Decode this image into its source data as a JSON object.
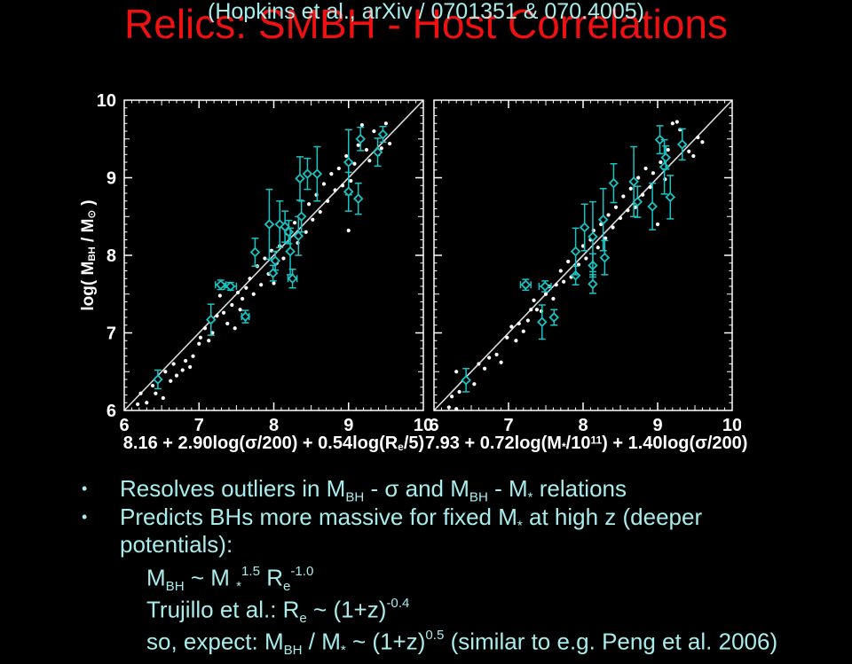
{
  "slide": {
    "title": "Relics: SMBH - Host Correlations",
    "subtitle": "(Hopkins et al., arXiv / 0701351 & 070.4005)",
    "bullet_char": "•",
    "colors": {
      "background": "#000000",
      "title": "#ee1111",
      "subtitle_text": "#a8ecec",
      "bullet_text": "#a8ecec",
      "plot_frame": "#ffffff",
      "plot_text": "#ffffff",
      "marker_white": "#ffffff",
      "marker_cyan": "#18c5c5",
      "unity_line": "#d9d9d9"
    },
    "bullets": [
      {
        "lines": [
          [
            [
              "n",
              "Resolves outliers in M"
            ],
            [
              "sub",
              "BH"
            ],
            [
              "n",
              " - σ and M"
            ],
            [
              "sub",
              "BH"
            ],
            [
              "n",
              " - M"
            ],
            [
              "sub",
              "*"
            ],
            [
              "n",
              " relations"
            ]
          ]
        ]
      },
      {
        "lines": [
          [
            [
              "n",
              "Predicts BHs more massive for fixed M"
            ],
            [
              "sub",
              "*"
            ],
            [
              "n",
              " at high z (deeper"
            ]
          ],
          [
            [
              "n",
              "potentials):"
            ]
          ]
        ]
      }
    ],
    "sub_items": [
      [
        [
          "n",
          "M"
        ],
        [
          "sub",
          "BH"
        ],
        [
          "n",
          " ~ M "
        ],
        [
          "sub",
          "*"
        ],
        [
          "sup",
          "1.5"
        ],
        [
          "n",
          " R"
        ],
        [
          "sub",
          "e"
        ],
        [
          "sup",
          "-1.0"
        ]
      ],
      [
        [
          "n",
          "Trujillo et al.: R"
        ],
        [
          "sub",
          "e"
        ],
        [
          "n",
          " ~ (1+z)"
        ],
        [
          "sup",
          "-0.4"
        ]
      ],
      [
        [
          "n",
          "so, expect: M"
        ],
        [
          "sub",
          "BH"
        ],
        [
          "n",
          " / M"
        ],
        [
          "sub",
          "*"
        ],
        [
          "n",
          " ~ (1+z)"
        ],
        [
          "sup",
          "0.5"
        ],
        [
          "n",
          " (similar to e.g. Peng et al. 2006)"
        ]
      ]
    ]
  },
  "chart_data": [
    {
      "type": "scatter",
      "xlim": [
        6,
        10
      ],
      "ylim": [
        6,
        10
      ],
      "xticks": [
        6,
        7,
        8,
        9,
        10
      ],
      "yticks": [
        6,
        7,
        8,
        9,
        10
      ],
      "show_ytick_labels": true,
      "grid": false,
      "legend": false,
      "xlabel_rich": [
        [
          "n",
          "8.16 + 2.90log(σ/200) + 0.54log(R"
        ],
        [
          "sub",
          "e"
        ],
        [
          "n",
          "/5)"
        ]
      ],
      "ylabel_rich": [
        [
          "n",
          "log( M"
        ],
        [
          "sub",
          "BH"
        ],
        [
          "n",
          " / M"
        ],
        [
          "sub",
          "⊙"
        ],
        [
          "n",
          " )"
        ]
      ],
      "unity_line": {
        "x": [
          6,
          10
        ],
        "y": [
          6,
          10
        ]
      },
      "series": [
        {
          "marker": "dot",
          "color": "#ffffff",
          "points": [
            [
              6.18,
              6.08
            ],
            [
              6.22,
              6.22
            ],
            [
              6.3,
              6.1
            ],
            [
              6.38,
              6.32
            ],
            [
              6.42,
              6.22
            ],
            [
              6.52,
              6.16
            ],
            [
              6.55,
              6.5
            ],
            [
              6.62,
              6.38
            ],
            [
              6.66,
              6.6
            ],
            [
              6.7,
              6.45
            ],
            [
              6.78,
              6.52
            ],
            [
              6.82,
              6.64
            ],
            [
              6.88,
              6.56
            ],
            [
              6.92,
              6.7
            ],
            [
              7.0,
              6.86
            ],
            [
              7.02,
              6.94
            ],
            [
              7.08,
              7.06
            ],
            [
              7.13,
              6.9
            ],
            [
              7.18,
              7.0
            ],
            [
              7.24,
              7.22
            ],
            [
              7.28,
              7.48
            ],
            [
              7.33,
              7.26
            ],
            [
              7.38,
              7.12
            ],
            [
              7.44,
              7.36
            ],
            [
              7.48,
              7.06
            ],
            [
              7.52,
              7.52
            ],
            [
              7.55,
              7.3
            ],
            [
              7.58,
              7.44
            ],
            [
              7.63,
              7.58
            ],
            [
              7.68,
              7.7
            ],
            [
              7.73,
              7.5
            ],
            [
              7.78,
              7.86
            ],
            [
              7.83,
              7.62
            ],
            [
              7.88,
              7.96
            ],
            [
              7.93,
              7.76
            ],
            [
              7.97,
              8.06
            ],
            [
              8.0,
              7.64
            ],
            [
              8.04,
              7.9
            ],
            [
              8.08,
              8.12
            ],
            [
              8.13,
              7.96
            ],
            [
              8.18,
              8.28
            ],
            [
              8.23,
              8.06
            ],
            [
              8.28,
              8.42
            ],
            [
              8.32,
              8.16
            ],
            [
              8.38,
              8.52
            ],
            [
              8.43,
              8.3
            ],
            [
              8.47,
              8.66
            ],
            [
              8.52,
              8.46
            ],
            [
              8.57,
              8.78
            ],
            [
              8.62,
              8.56
            ],
            [
              8.67,
              8.92
            ],
            [
              8.72,
              8.7
            ],
            [
              8.77,
              9.05
            ],
            [
              8.82,
              8.84
            ],
            [
              8.87,
              9.12
            ],
            [
              8.92,
              8.9
            ],
            [
              8.97,
              9.28
            ],
            [
              9.0,
              8.32
            ],
            [
              9.03,
              8.96
            ],
            [
              9.08,
              9.18
            ],
            [
              9.13,
              9.42
            ],
            [
              9.18,
              9.68
            ],
            [
              9.24,
              9.36
            ],
            [
              9.28,
              9.22
            ],
            [
              9.34,
              9.6
            ],
            [
              9.4,
              9.3
            ],
            [
              9.44,
              9.38
            ],
            [
              9.5,
              9.7
            ],
            [
              9.55,
              9.44
            ]
          ]
        },
        {
          "marker": "diamond",
          "color": "#18c5c5",
          "points": [
            [
              6.45,
              6.4,
              0.12
            ],
            [
              7.16,
              7.17,
              0.2
            ],
            [
              7.29,
              7.62,
              0.06,
              0.07
            ],
            [
              7.42,
              7.6,
              0.05,
              0.08
            ],
            [
              7.62,
              7.21,
              0.08,
              0.05
            ],
            [
              7.75,
              8.04,
              0.18
            ],
            [
              7.94,
              8.4,
              0.45
            ],
            [
              8.02,
              7.93,
              0.12
            ],
            [
              7.99,
              7.77,
              0.1
            ],
            [
              8.08,
              8.4,
              0.3
            ],
            [
              8.15,
              8.37,
              0.2
            ],
            [
              8.2,
              8.3,
              0.15
            ],
            [
              8.22,
              8.05,
              0.3
            ],
            [
              8.25,
              7.7,
              0.12,
              0.06
            ],
            [
              8.33,
              8.25,
              0.25
            ],
            [
              8.37,
              8.5,
              0.2
            ],
            [
              8.35,
              8.99,
              0.28
            ],
            [
              8.45,
              9.05,
              0.2
            ],
            [
              8.58,
              9.05,
              0.35
            ],
            [
              9.0,
              9.2,
              0.42
            ],
            [
              9.0,
              8.82,
              0.25
            ],
            [
              9.13,
              8.73,
              0.2
            ],
            [
              9.16,
              9.5,
              0.15
            ],
            [
              9.39,
              9.33,
              0.18
            ],
            [
              9.46,
              9.56,
              0.1
            ]
          ]
        }
      ]
    },
    {
      "type": "scatter",
      "xlim": [
        6,
        10
      ],
      "ylim": [
        6,
        10
      ],
      "xticks": [
        6,
        7,
        8,
        9,
        10
      ],
      "yticks": [
        6,
        7,
        8,
        9,
        10
      ],
      "show_ytick_labels": false,
      "grid": false,
      "legend": false,
      "xlabel_rich": [
        [
          "n",
          "7.93 + 0.72log(M"
        ],
        [
          "sub",
          "*"
        ],
        [
          "n",
          "/10"
        ],
        [
          "sup",
          "11"
        ],
        [
          "n",
          ") + 1.40log(σ/200)"
        ]
      ],
      "unity_line": {
        "x": [
          6,
          10
        ],
        "y": [
          6,
          10
        ]
      },
      "series": [
        {
          "marker": "dot",
          "color": "#ffffff",
          "points": [
            [
              6.2,
              6.04
            ],
            [
              6.24,
              6.18
            ],
            [
              6.3,
              6.02
            ],
            [
              6.34,
              6.24
            ],
            [
              6.3,
              6.5
            ],
            [
              6.44,
              6.4
            ],
            [
              6.54,
              6.34
            ],
            [
              6.6,
              6.6
            ],
            [
              6.68,
              6.54
            ],
            [
              6.74,
              6.68
            ],
            [
              6.84,
              6.72
            ],
            [
              6.9,
              6.62
            ],
            [
              6.98,
              6.94
            ],
            [
              7.04,
              7.08
            ],
            [
              7.1,
              6.9
            ],
            [
              7.14,
              7.12
            ],
            [
              7.2,
              7.02
            ],
            [
              7.26,
              7.16
            ],
            [
              7.3,
              7.3
            ],
            [
              7.34,
              7.42
            ],
            [
              7.38,
              7.3
            ],
            [
              7.44,
              7.28
            ],
            [
              7.5,
              7.5
            ],
            [
              7.54,
              7.6
            ],
            [
              7.6,
              7.44
            ],
            [
              7.64,
              7.62
            ],
            [
              7.7,
              7.8
            ],
            [
              7.74,
              7.66
            ],
            [
              7.8,
              7.92
            ],
            [
              7.84,
              7.72
            ],
            [
              7.9,
              8.04
            ],
            [
              7.94,
              7.88
            ],
            [
              8.0,
              8.12
            ],
            [
              8.04,
              7.96
            ],
            [
              8.1,
              8.2
            ],
            [
              8.14,
              8.32
            ],
            [
              8.2,
              8.1
            ],
            [
              8.24,
              8.4
            ],
            [
              8.3,
              8.22
            ],
            [
              8.34,
              8.52
            ],
            [
              8.4,
              8.36
            ],
            [
              8.44,
              8.62
            ],
            [
              8.5,
              8.48
            ],
            [
              8.54,
              8.76
            ],
            [
              8.6,
              8.58
            ],
            [
              8.64,
              8.86
            ],
            [
              8.7,
              8.62
            ],
            [
              8.74,
              9.0
            ],
            [
              8.8,
              8.78
            ],
            [
              8.84,
              9.12
            ],
            [
              8.9,
              8.88
            ],
            [
              8.94,
              9.06
            ],
            [
              9.0,
              8.4
            ],
            [
              9.04,
              9.2
            ],
            [
              9.1,
              8.98
            ],
            [
              9.14,
              9.36
            ],
            [
              9.2,
              9.7
            ],
            [
              9.26,
              9.72
            ],
            [
              9.3,
              9.62
            ],
            [
              9.36,
              9.42
            ],
            [
              9.42,
              9.34
            ],
            [
              9.48,
              9.28
            ],
            [
              9.54,
              9.52
            ],
            [
              9.6,
              9.46
            ]
          ]
        },
        {
          "marker": "diamond",
          "color": "#18c5c5",
          "points": [
            [
              6.43,
              6.39,
              0.15
            ],
            [
              7.23,
              7.62,
              0.07,
              0.07
            ],
            [
              7.45,
              7.14,
              0.22
            ],
            [
              7.49,
              7.6,
              0.07,
              0.08
            ],
            [
              7.61,
              7.2,
              0.1
            ],
            [
              7.9,
              7.74,
              0.12
            ],
            [
              7.9,
              8.05,
              0.3
            ],
            [
              8.02,
              8.36,
              0.3
            ],
            [
              8.13,
              7.87,
              0.15
            ],
            [
              8.13,
              7.63,
              0.12
            ],
            [
              8.13,
              8.24,
              0.45
            ],
            [
              8.27,
              8.46,
              0.4
            ],
            [
              8.29,
              7.97,
              0.22
            ],
            [
              8.41,
              8.93,
              0.25
            ],
            [
              8.68,
              8.95,
              0.45
            ],
            [
              8.73,
              8.69,
              0.2
            ],
            [
              8.93,
              8.63,
              0.3
            ],
            [
              9.03,
              9.49,
              0.18
            ],
            [
              9.09,
              9.14,
              0.35
            ],
            [
              9.11,
              9.26,
              0.15
            ],
            [
              9.17,
              8.75,
              0.28
            ],
            [
              9.33,
              9.43,
              0.2
            ]
          ]
        }
      ]
    }
  ]
}
